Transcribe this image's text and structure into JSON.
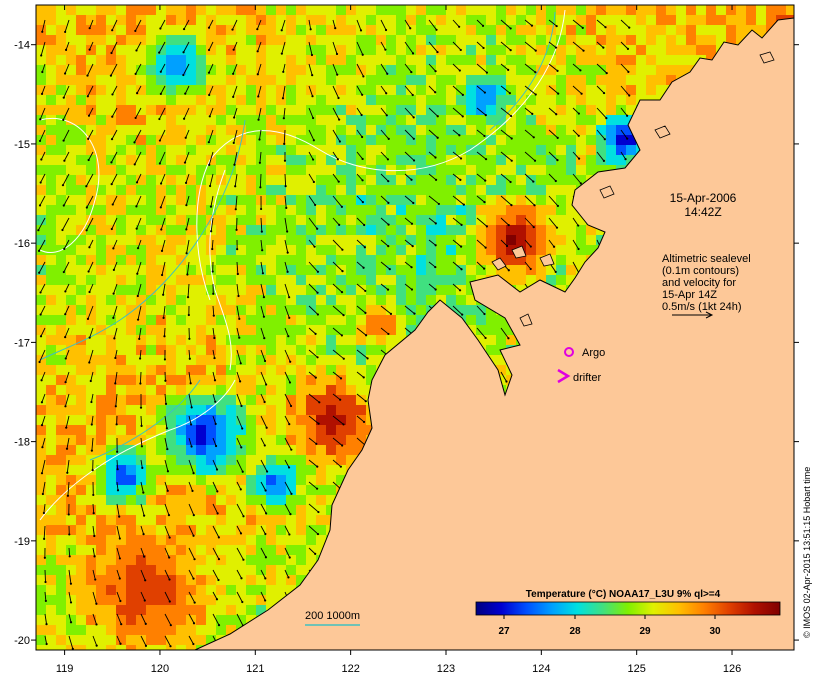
{
  "map": {
    "lon_ticks": [
      "119",
      "120",
      "121",
      "122",
      "123",
      "124",
      "125",
      "126"
    ],
    "lat_ticks": [
      "-14",
      "-15",
      "-16",
      "-17",
      "-18",
      "-19",
      "-20"
    ],
    "lon_range": [
      118.7,
      126.65
    ],
    "lat_range": [
      -13.6,
      -20.1
    ]
  },
  "date_label": {
    "line1": "15-Apr-2006",
    "line2": "14:42Z"
  },
  "altimetry_note": {
    "lines": [
      "Altimetric sealevel",
      "(0.1m contours)",
      "and velocity for",
      "15-Apr 14Z",
      "0.5m/s (1kt 24h)"
    ]
  },
  "legend": {
    "argo_label": "Argo",
    "drifter_label": "drifter",
    "marker_color": "#e000e0"
  },
  "depth_legend": {
    "label": "200  1000m",
    "color": "#40c0c0"
  },
  "colorbar": {
    "title": "Temperature (°C) NOAA17_L3U 9% ql>=4",
    "tick_labels": [
      "27",
      "28",
      "29",
      "30"
    ],
    "colors": [
      "#000080",
      "#0000d0",
      "#0050ff",
      "#00a0ff",
      "#00e0e0",
      "#40e080",
      "#80f000",
      "#e0f000",
      "#ffc000",
      "#ff8000",
      "#e04000",
      "#b01000",
      "#800000"
    ]
  },
  "credit": "© IMOS 02-Apr-2015 13:51:15 Hobart time",
  "land_color": "#fdc898"
}
